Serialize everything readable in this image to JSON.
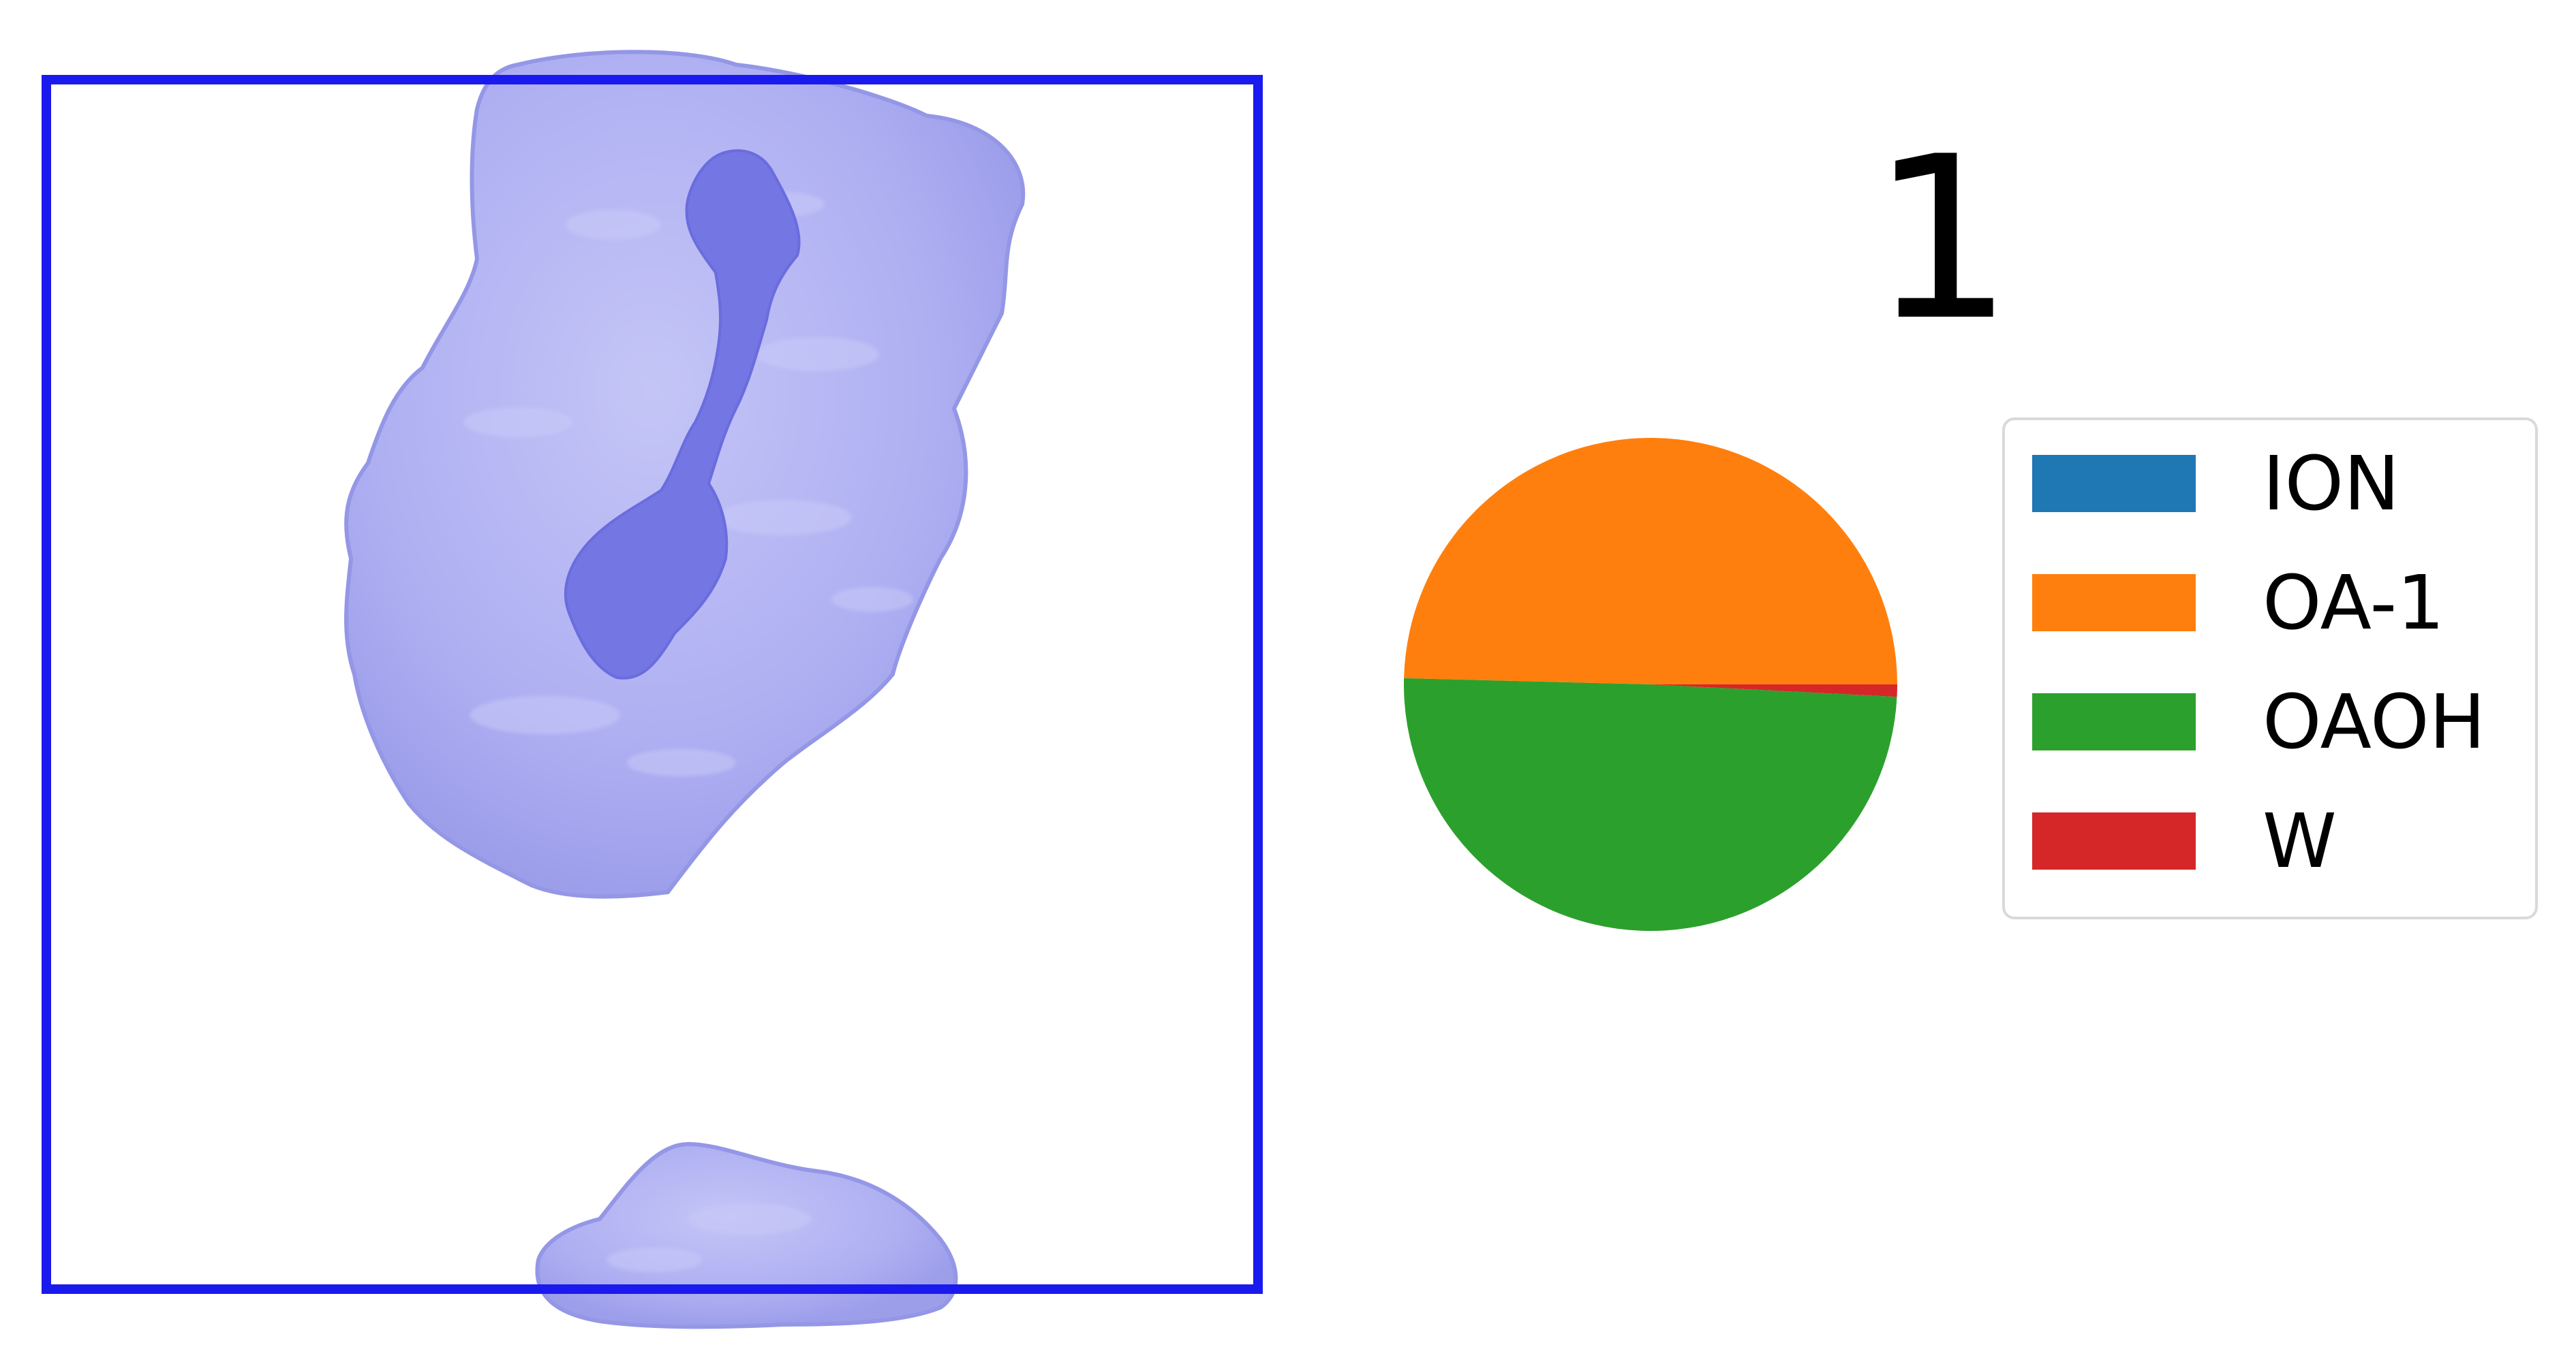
{
  "panel_label": "1",
  "render_view": {
    "box_color": "#1a1aee",
    "surface_color": "#a9aaf0",
    "core_color": "#7577e4"
  },
  "chart_data": {
    "type": "pie",
    "title": "",
    "legend_position": "right",
    "slices": [
      {
        "label": "ION",
        "value": 0.0,
        "color": "#1f77b4"
      },
      {
        "label": "OA-1",
        "value": 49.6,
        "color": "#ff7f0e"
      },
      {
        "label": "OAOH",
        "value": 49.6,
        "color": "#2ca02c"
      },
      {
        "label": "W",
        "value": 0.8,
        "color": "#d62728"
      }
    ]
  }
}
